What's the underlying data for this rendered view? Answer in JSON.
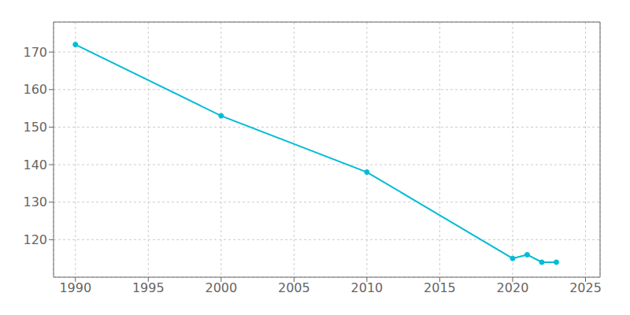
{
  "chart_data": {
    "type": "line",
    "x": [
      1990,
      2000,
      2010,
      2020,
      2021,
      2022,
      2023
    ],
    "values": [
      172,
      153,
      138,
      115,
      116,
      114,
      114
    ],
    "color": "#00BCD4",
    "marker": "circle",
    "xlim": [
      1988.5,
      2026
    ],
    "ylim": [
      110,
      178
    ],
    "xticks": [
      1990,
      1995,
      2000,
      2005,
      2010,
      2015,
      2020,
      2025
    ],
    "yticks": [
      120,
      130,
      140,
      150,
      160,
      170
    ],
    "grid": true
  }
}
